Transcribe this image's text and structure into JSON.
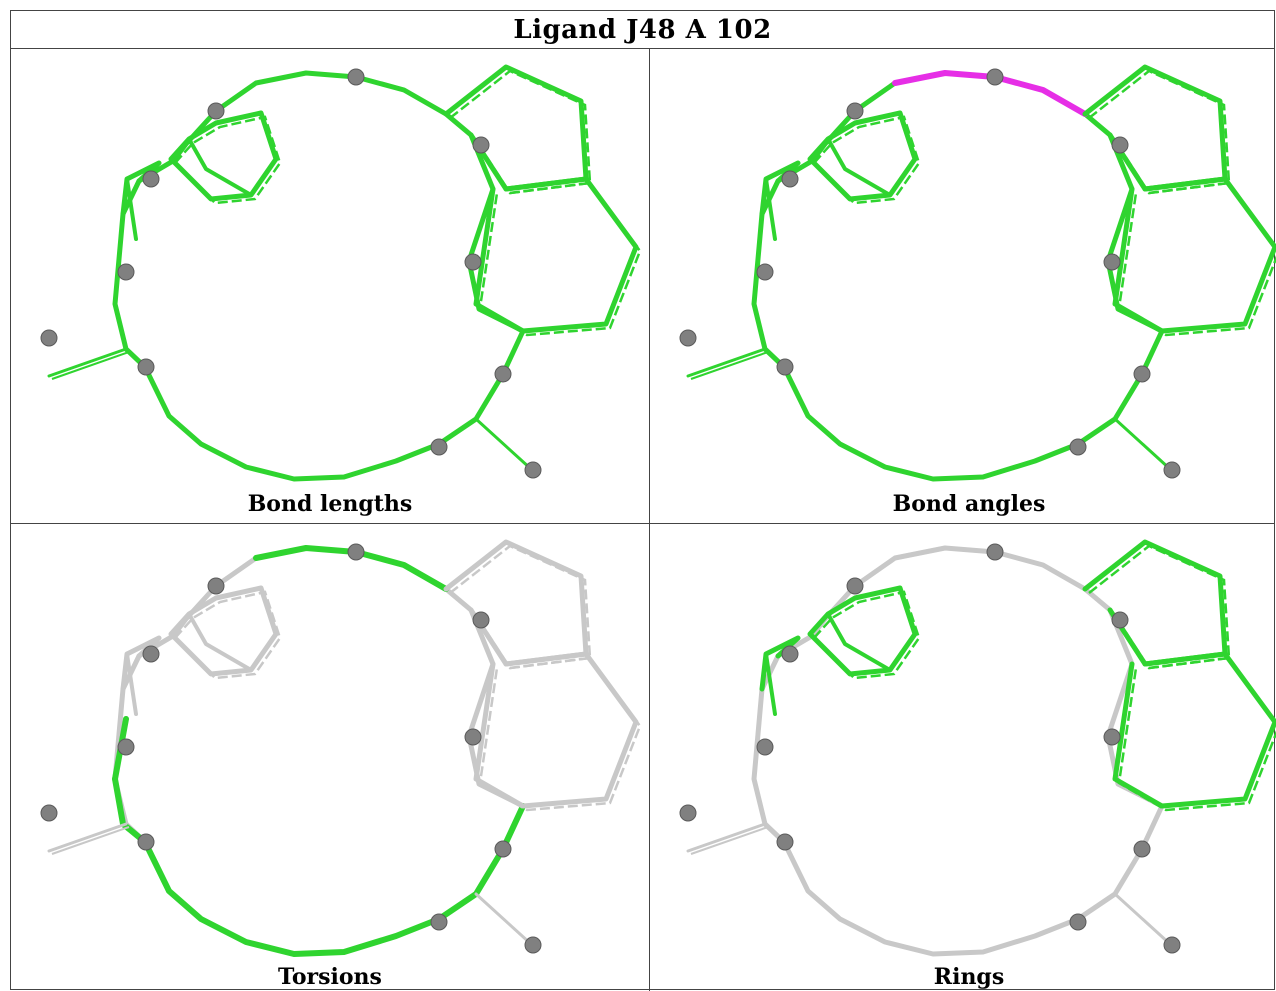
{
  "title": "Ligand J48 A 102",
  "colors": {
    "good": "#2fd42f",
    "outlier": "#e62ee6",
    "neutral": "#c8c8c8",
    "atom": "#808080"
  },
  "panels": [
    {
      "label": "Bond lengths",
      "coloring": "all-green"
    },
    {
      "label": "Bond angles",
      "coloring": "angle-outlier"
    },
    {
      "label": "Torsions",
      "coloring": "torsion-partial"
    },
    {
      "label": "Rings",
      "coloring": "rings-only"
    }
  ]
}
